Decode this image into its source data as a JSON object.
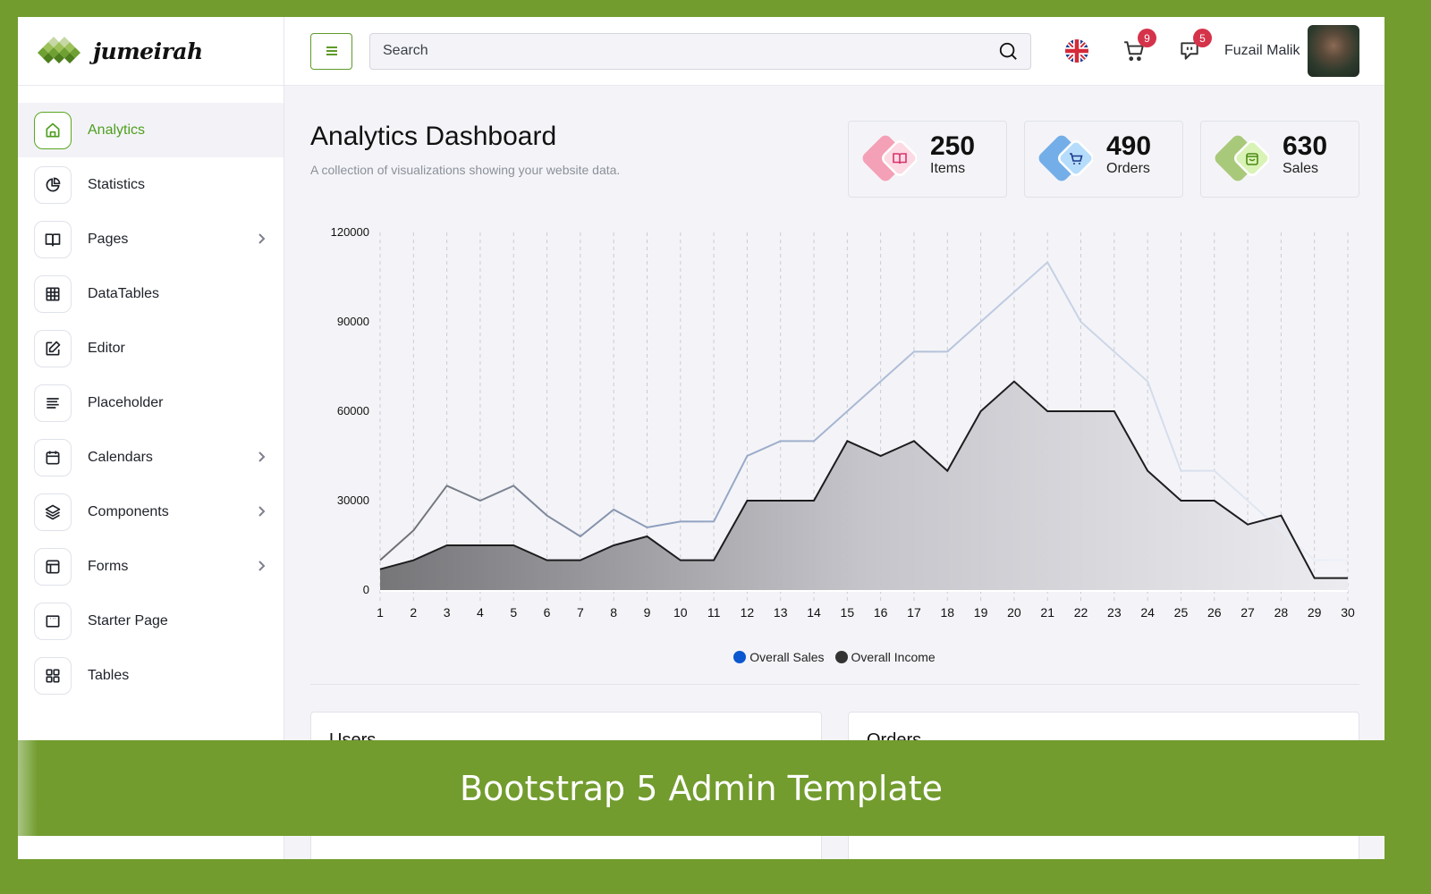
{
  "brand": {
    "name": "jumeirah"
  },
  "sidebar": {
    "items": [
      {
        "label": "Analytics",
        "icon": "home-icon",
        "active": true,
        "has_submenu": false
      },
      {
        "label": "Statistics",
        "icon": "pie-chart-icon",
        "active": false,
        "has_submenu": false
      },
      {
        "label": "Pages",
        "icon": "book-open-icon",
        "active": false,
        "has_submenu": true
      },
      {
        "label": "DataTables",
        "icon": "grid-table-icon",
        "active": false,
        "has_submenu": false
      },
      {
        "label": "Editor",
        "icon": "edit-icon",
        "active": false,
        "has_submenu": false
      },
      {
        "label": "Placeholder",
        "icon": "align-left-icon",
        "active": false,
        "has_submenu": false
      },
      {
        "label": "Calendars",
        "icon": "calendar-icon",
        "active": false,
        "has_submenu": true
      },
      {
        "label": "Components",
        "icon": "layers-icon",
        "active": false,
        "has_submenu": true
      },
      {
        "label": "Forms",
        "icon": "layout-icon",
        "active": false,
        "has_submenu": true
      },
      {
        "label": "Starter Page",
        "icon": "window-icon",
        "active": false,
        "has_submenu": false
      },
      {
        "label": "Tables",
        "icon": "grid-icon",
        "active": false,
        "has_submenu": false
      }
    ]
  },
  "header": {
    "search": {
      "placeholder": "Search",
      "value": ""
    },
    "cart_count": "9",
    "messages_count": "5",
    "user_name": "Fuzail Malik",
    "language": "en-GB"
  },
  "page": {
    "title": "Analytics Dashboard",
    "subtitle": "A collection of visualizations showing your website data."
  },
  "stats": [
    {
      "value": "250",
      "label": "Items",
      "icon": "book-icon",
      "color": "#f48fb1",
      "accent": "#d6336c"
    },
    {
      "value": "490",
      "label": "Orders",
      "icon": "cart-icon",
      "color": "#74aee8",
      "accent": "#1d3b8a"
    },
    {
      "value": "630",
      "label": "Sales",
      "icon": "shopping-bag-icon",
      "color": "#a9c97a",
      "accent": "#4e8a14"
    }
  ],
  "chart_data": {
    "type": "area",
    "title": "",
    "xlabel": "",
    "ylabel": "",
    "x": [
      1,
      2,
      3,
      4,
      5,
      6,
      7,
      8,
      9,
      10,
      11,
      12,
      13,
      14,
      15,
      16,
      17,
      18,
      19,
      20,
      21,
      22,
      23,
      24,
      25,
      26,
      27,
      28,
      29,
      30
    ],
    "y_ticks": [
      "0",
      "30000",
      "60000",
      "90000",
      "120000"
    ],
    "ylim": [
      0,
      120000
    ],
    "grid": "vertical dashed",
    "legend_position": "bottom",
    "series": [
      {
        "name": "Overall Sales",
        "color": "#0b57d0",
        "values": [
          10000,
          20000,
          35000,
          30000,
          35000,
          25000,
          18000,
          27000,
          21000,
          23000,
          23000,
          45000,
          50000,
          50000,
          60000,
          70000,
          80000,
          80000,
          90000,
          100000,
          110000,
          90000,
          80000,
          70000,
          40000,
          40000,
          30000,
          20000,
          10000,
          10000
        ]
      },
      {
        "name": "Overall Income",
        "color": "#333333",
        "values": [
          7000,
          10000,
          15000,
          15000,
          15000,
          10000,
          10000,
          15000,
          18000,
          10000,
          10000,
          30000,
          30000,
          30000,
          50000,
          45000,
          50000,
          40000,
          60000,
          70000,
          60000,
          60000,
          60000,
          40000,
          30000,
          30000,
          22000,
          25000,
          4000,
          4000
        ]
      }
    ]
  },
  "cards": [
    {
      "title": "Users"
    },
    {
      "title": "Orders"
    }
  ],
  "banner": {
    "text": "Bootstrap 5 Admin Template"
  }
}
